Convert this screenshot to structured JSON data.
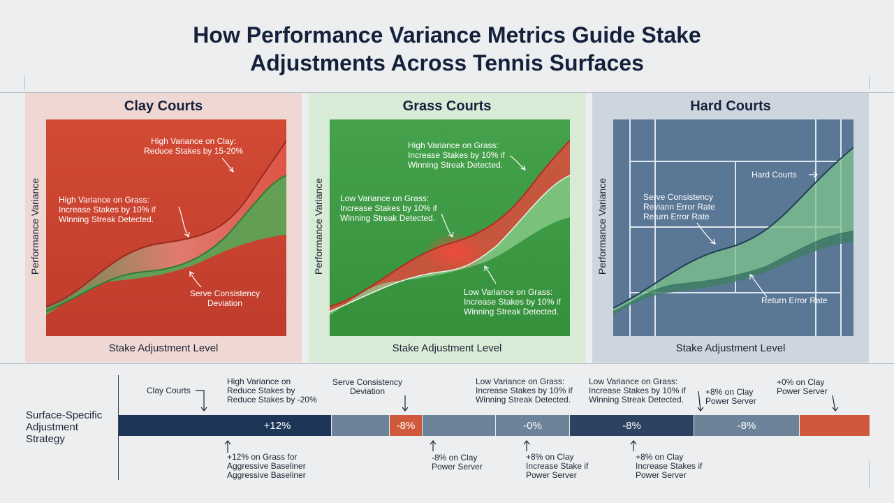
{
  "title_line1": "How Performance Variance Metrics Guide Stake",
  "title_line2": "Adjustments Across Tennis Surfaces",
  "panels": [
    {
      "title": "Clay Courts",
      "ylabel": "Performance Variance",
      "xlabel": "Stake Adjustment Level",
      "annotations": [
        "High Variance on Clay:\nReduce Stakes by 15-20%",
        "High Variance on Grass:\nIncrease Stakes by 10% if\nWinning Streak Detected.",
        "Serve Consistency\nDeviation"
      ]
    },
    {
      "title": "Grass Courts",
      "ylabel": "Performance Variance",
      "xlabel": "Stake Adjustment Level",
      "annotations": [
        "High Variance on Grass:\nIncrease Stakes by 10% if\nWinning Streak Detected.",
        "Low Variance on Grass:\nIncrease Stakes by 10% if\nWinning Streak Detected.",
        "Low Variance on Grass:\nIncrease Stakes by 10% if\nWinning Streak Detected."
      ]
    },
    {
      "title": "Hard Courts",
      "ylabel": "Performance Variance",
      "xlabel": "Stake Adjustment Level",
      "annotations": [
        "Hard Courts",
        "Serve Consistency\nReviann Error Rate\nReturn Error Rate",
        "Return Error Rate"
      ]
    }
  ],
  "strategy": {
    "label": "Surface-Specific\nAdjustment\nStrategy",
    "segments": [
      {
        "label": "+12%",
        "color": "#1d3557"
      },
      {
        "label": "",
        "color": "#6d8399"
      },
      {
        "label": "-8%",
        "color": "#cf5a3b"
      },
      {
        "label": "",
        "color": "#6d8399"
      },
      {
        "label": "-0%",
        "color": "#6d8399"
      },
      {
        "label": "-8%",
        "color": "#2c4260"
      },
      {
        "label": "-8%",
        "color": "#6d8399"
      },
      {
        "label": "",
        "color": "#cf5a3b"
      }
    ],
    "above": [
      "Clay Courts",
      "High Variance on\nReduce Stakes by\nReduce Stakes by -20%",
      "Serve Consistency\nDeviation",
      "Low Variance on Grass:\nIncrease Stakes by 10% if\nWinning Streak Detected.",
      "Low Variance on Grass:\nIncrease Stakes by 10% if\nWinning Streak Detected.",
      "+8% on Clay\nPower Server",
      "+0% on Clay\nPower Server"
    ],
    "below": [
      "+12% on Grass for\nAggressive Baseliner\nAggressive Baseliner",
      "-8% on Clay\nPower Server",
      "+8% on Clay\nIncrease Stake if\nPower Server",
      "+8% on Clay\nIncrease Stakes if\nPower Server"
    ]
  },
  "chart_data": [
    {
      "type": "area",
      "title": "Clay Courts",
      "xlabel": "Stake Adjustment Level",
      "ylabel": "Performance Variance",
      "colors": {
        "background": "#c9402e",
        "upper": "#e07a70",
        "lower": "#5aa85a"
      }
    },
    {
      "type": "area",
      "title": "Grass Courts",
      "xlabel": "Stake Adjustment Level",
      "ylabel": "Performance Variance",
      "colors": {
        "background": "#3f9a45",
        "upper": "#e0473c",
        "lower": "#88c98a"
      }
    },
    {
      "type": "area",
      "title": "Hard Courts",
      "xlabel": "Stake Adjustment Level",
      "ylabel": "Performance Variance",
      "colors": {
        "background": "#5b7896",
        "upper": "#7fc18a",
        "lower": "#4e8d6d"
      }
    }
  ]
}
